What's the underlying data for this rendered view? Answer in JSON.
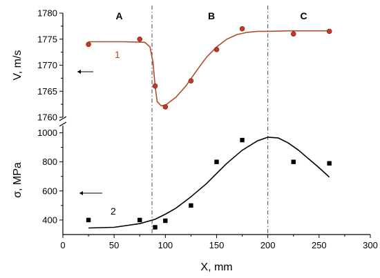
{
  "chart_data": {
    "type": "scatter",
    "x_axis": {
      "label": "X, mm",
      "range": [
        0,
        300
      ],
      "ticks": [
        0,
        50,
        100,
        150,
        200,
        250,
        300
      ]
    },
    "panels": [
      {
        "id": "velocity",
        "y_axis": {
          "label": "V, m/s",
          "range": [
            1760,
            1780
          ],
          "ticks": [
            1760,
            1765,
            1770,
            1775,
            1780
          ]
        },
        "curve_label": "1",
        "color": "#b34a2a",
        "points": {
          "x": [
            25,
            75,
            90,
            100,
            125,
            150,
            175,
            225,
            260
          ],
          "y": [
            1774,
            1775,
            1766,
            1762,
            1767,
            1773,
            1777,
            1776,
            1776.5
          ]
        },
        "fit": {
          "x": [
            25,
            60,
            80,
            85,
            88,
            90,
            92,
            96,
            100,
            110,
            120,
            130,
            140,
            150,
            160,
            170,
            180,
            190,
            200,
            220,
            240,
            260
          ],
          "y": [
            1774.5,
            1774.5,
            1774.4,
            1773.5,
            1770.5,
            1766,
            1763,
            1762.2,
            1762.3,
            1763.8,
            1766,
            1768.8,
            1771.5,
            1773.5,
            1775,
            1775.9,
            1776.3,
            1776.5,
            1776.5,
            1776.6,
            1776.6,
            1776.6
          ]
        }
      },
      {
        "id": "stress",
        "y_axis": {
          "label": "σ, MPa",
          "range": [
            300,
            1050
          ],
          "ticks": [
            400,
            600,
            800,
            1000
          ]
        },
        "curve_label": "2",
        "color": "#000000",
        "points": {
          "x": [
            25,
            75,
            90,
            100,
            125,
            150,
            175,
            225,
            260
          ],
          "y": [
            400,
            400,
            350,
            395,
            500,
            800,
            950,
            800,
            790
          ]
        },
        "fit": {
          "x": [
            25,
            50,
            75,
            90,
            100,
            110,
            125,
            140,
            150,
            160,
            175,
            190,
            200,
            210,
            220,
            230,
            240,
            250,
            260
          ],
          "y": [
            345,
            350,
            375,
            405,
            440,
            480,
            560,
            650,
            720,
            790,
            880,
            945,
            970,
            965,
            930,
            880,
            820,
            760,
            695
          ]
        }
      }
    ],
    "regions": {
      "labels": [
        "A",
        "B",
        "C"
      ],
      "label_x": [
        55,
        145,
        235
      ],
      "boundaries": [
        87,
        200
      ]
    }
  }
}
